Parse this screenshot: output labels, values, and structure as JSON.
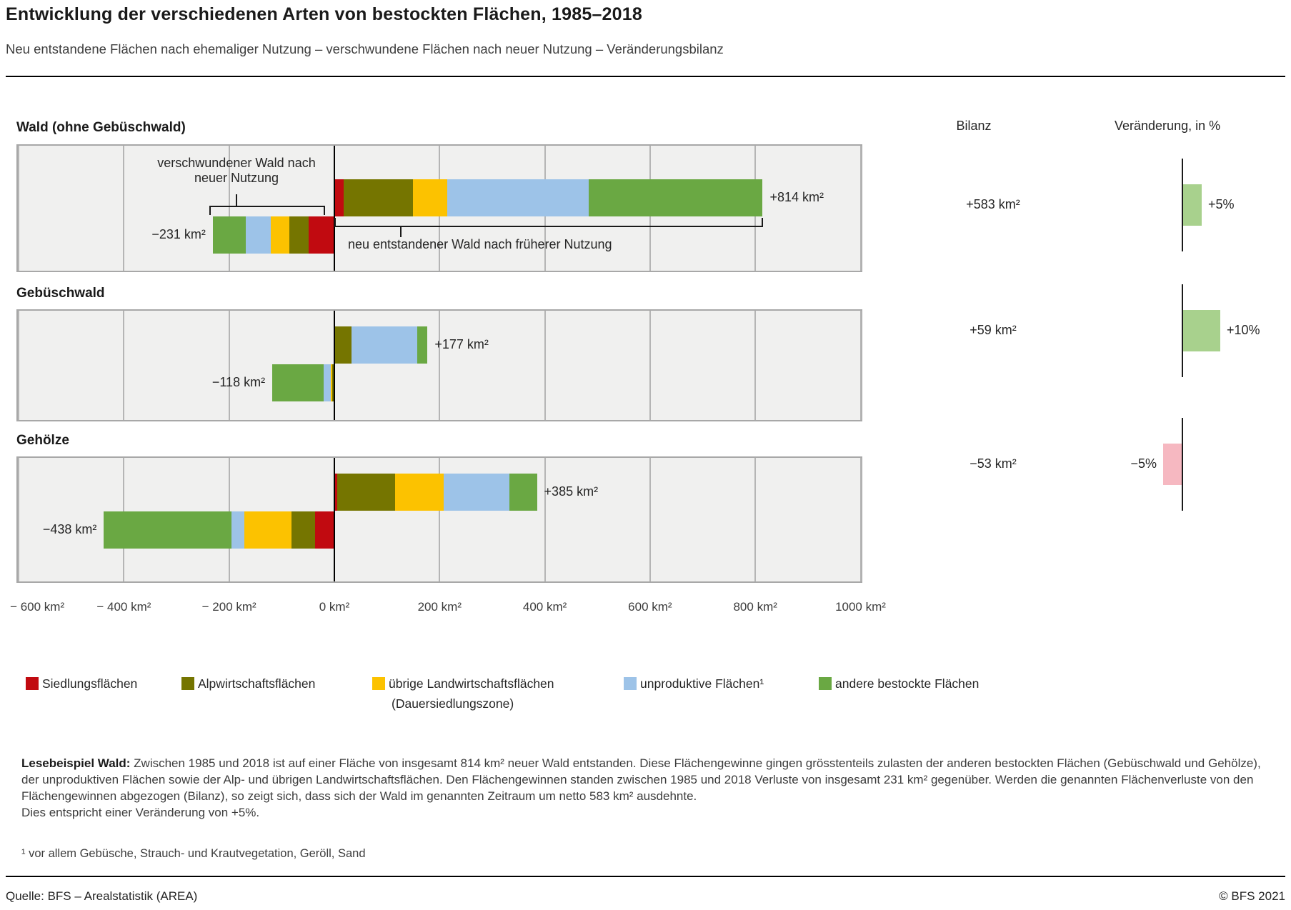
{
  "header": {
    "title": "Entwicklung der verschiedenen Arten von bestockten Flächen, 1985–2018",
    "subtitle": "Neu entstandene Flächen nach ehemaliger Nutzung – verschwundene Flächen nach neuer Nutzung – Veränderungsbilanz"
  },
  "columns": {
    "bilanz": "Bilanz",
    "veraenderung": "Veränderung, in %"
  },
  "palette": {
    "siedlung": "#c10a10",
    "alp": "#757500",
    "landwirtschaft": "#fcc200",
    "unproduktiv": "#9dc3e8",
    "bestockt": "#6aa843",
    "pos_change": "#a8d18d",
    "neg_change": "#f6b8c1",
    "panel_bg": "#f0f0ef",
    "panel_border": "#a8a8a8",
    "gridline": "#b5b5b5"
  },
  "chart_data": {
    "type": "bar",
    "variant": "diverging-stacked-horizontal",
    "title": "Entwicklung der verschiedenen Arten von bestockten Flächen, 1985–2018",
    "unit": "km²",
    "axis": {
      "ticks": [
        -600,
        -400,
        -200,
        0,
        200,
        400,
        600,
        800,
        1000
      ],
      "tick_labels": [
        "− 600 km²",
        "− 400 km²",
        "− 200 km²",
        "0 km²",
        "200 km²",
        "400 km²",
        "600 km²",
        "800 km²",
        "1000 km²"
      ],
      "range": [
        -637,
        1005
      ],
      "grid": true
    },
    "legend": [
      {
        "key": "siedlung",
        "label": "Siedlungsflächen"
      },
      {
        "key": "alp",
        "label": "Alpwirtschaftsflächen"
      },
      {
        "key": "landwirtschaft",
        "label": "übrige Landwirtschaftsflächen",
        "sublabel": "(Dauersiedlungszone)"
      },
      {
        "key": "unproduktiv",
        "label": "unproduktive Flächen¹"
      },
      {
        "key": "bestockt",
        "label": "andere bestockte Flächen"
      }
    ],
    "rows": [
      {
        "name": "Wald (ohne Gebüschwald)",
        "loss": {
          "total": -231,
          "label": "−231 km²",
          "segments": [
            {
              "key": "bestockt",
              "value": 63
            },
            {
              "key": "unproduktiv",
              "value": 47
            },
            {
              "key": "landwirtschaft",
              "value": 36
            },
            {
              "key": "alp",
              "value": 36
            },
            {
              "key": "siedlung",
              "value": 49
            }
          ]
        },
        "gain": {
          "total": 814,
          "label": "+814 km²",
          "segments": [
            {
              "key": "siedlung",
              "value": 17
            },
            {
              "key": "alp",
              "value": 133
            },
            {
              "key": "landwirtschaft",
              "value": 64
            },
            {
              "key": "unproduktiv",
              "value": 270
            },
            {
              "key": "bestockt",
              "value": 330
            }
          ]
        },
        "bilanz": {
          "value": 583,
          "label": "+583 km²"
        },
        "change": {
          "pct": 5,
          "label": "+5%"
        },
        "annotations": {
          "loss": "verschwundener Wald nach neuer Nutzung",
          "gain": "neu entstandener Wald nach früherer Nutzung"
        }
      },
      {
        "name": "Gebüschwald",
        "loss": {
          "total": -118,
          "label": "−118 km²",
          "segments": [
            {
              "key": "bestockt",
              "value": 97
            },
            {
              "key": "unproduktiv",
              "value": 14
            },
            {
              "key": "landwirtschaft",
              "value": 3
            },
            {
              "key": "alp",
              "value": 4
            }
          ]
        },
        "gain": {
          "total": 177,
          "label": "+177 km²",
          "segments": [
            {
              "key": "alp",
              "value": 33
            },
            {
              "key": "unproduktiv",
              "value": 124
            },
            {
              "key": "bestockt",
              "value": 20
            }
          ]
        },
        "bilanz": {
          "value": 59,
          "label": "+59 km²"
        },
        "change": {
          "pct": 10,
          "label": "+10%"
        }
      },
      {
        "name": "Gehölze",
        "loss": {
          "total": -438,
          "label": "−438 km²",
          "segments": [
            {
              "key": "bestockt",
              "value": 242
            },
            {
              "key": "unproduktiv",
              "value": 25
            },
            {
              "key": "landwirtschaft",
              "value": 89
            },
            {
              "key": "alp",
              "value": 45
            },
            {
              "key": "siedlung",
              "value": 37
            }
          ]
        },
        "gain": {
          "total": 385,
          "label": "+385 km²",
          "segments": [
            {
              "key": "siedlung",
              "value": 6
            },
            {
              "key": "alp",
              "value": 110
            },
            {
              "key": "landwirtschaft",
              "value": 92
            },
            {
              "key": "unproduktiv",
              "value": 125
            },
            {
              "key": "bestockt",
              "value": 52
            }
          ]
        },
        "bilanz": {
          "value": -53,
          "label": "−53 km²"
        },
        "change": {
          "pct": -5,
          "label": "−5%"
        }
      }
    ]
  },
  "lesebeispiel": {
    "label": "Lesebeispiel Wald:",
    "text": "Zwischen 1985 und 2018 ist auf einer Fläche von insgesamt 814 km² neuer Wald entstanden. Diese Flächengewinne gingen grösstenteils zulasten der anderen bestockten Flächen (Gebüschwald und Gehölze), der unproduktiven Flächen sowie der Alp- und übrigen Landwirtschaftsflächen. Den Flächengewinnen standen zwischen 1985 und 2018 Verluste von insgesamt 231 km² gegenüber. Werden die genannten Flächenverluste von den Flächengewinnen abgezogen (Bilanz), so zeigt sich, dass sich der Wald im genannten Zeitraum um netto 583 km² ausdehnte.",
    "text2": "Dies entspricht einer Veränderung von +5%."
  },
  "footnote": {
    "text": "¹ vor allem Gebüsche, Strauch- und Krautvegetation, Geröll, Sand"
  },
  "footer": {
    "source": "Quelle: BFS – Arealstatistik (AREA)",
    "copyright": "© BFS 2021"
  }
}
